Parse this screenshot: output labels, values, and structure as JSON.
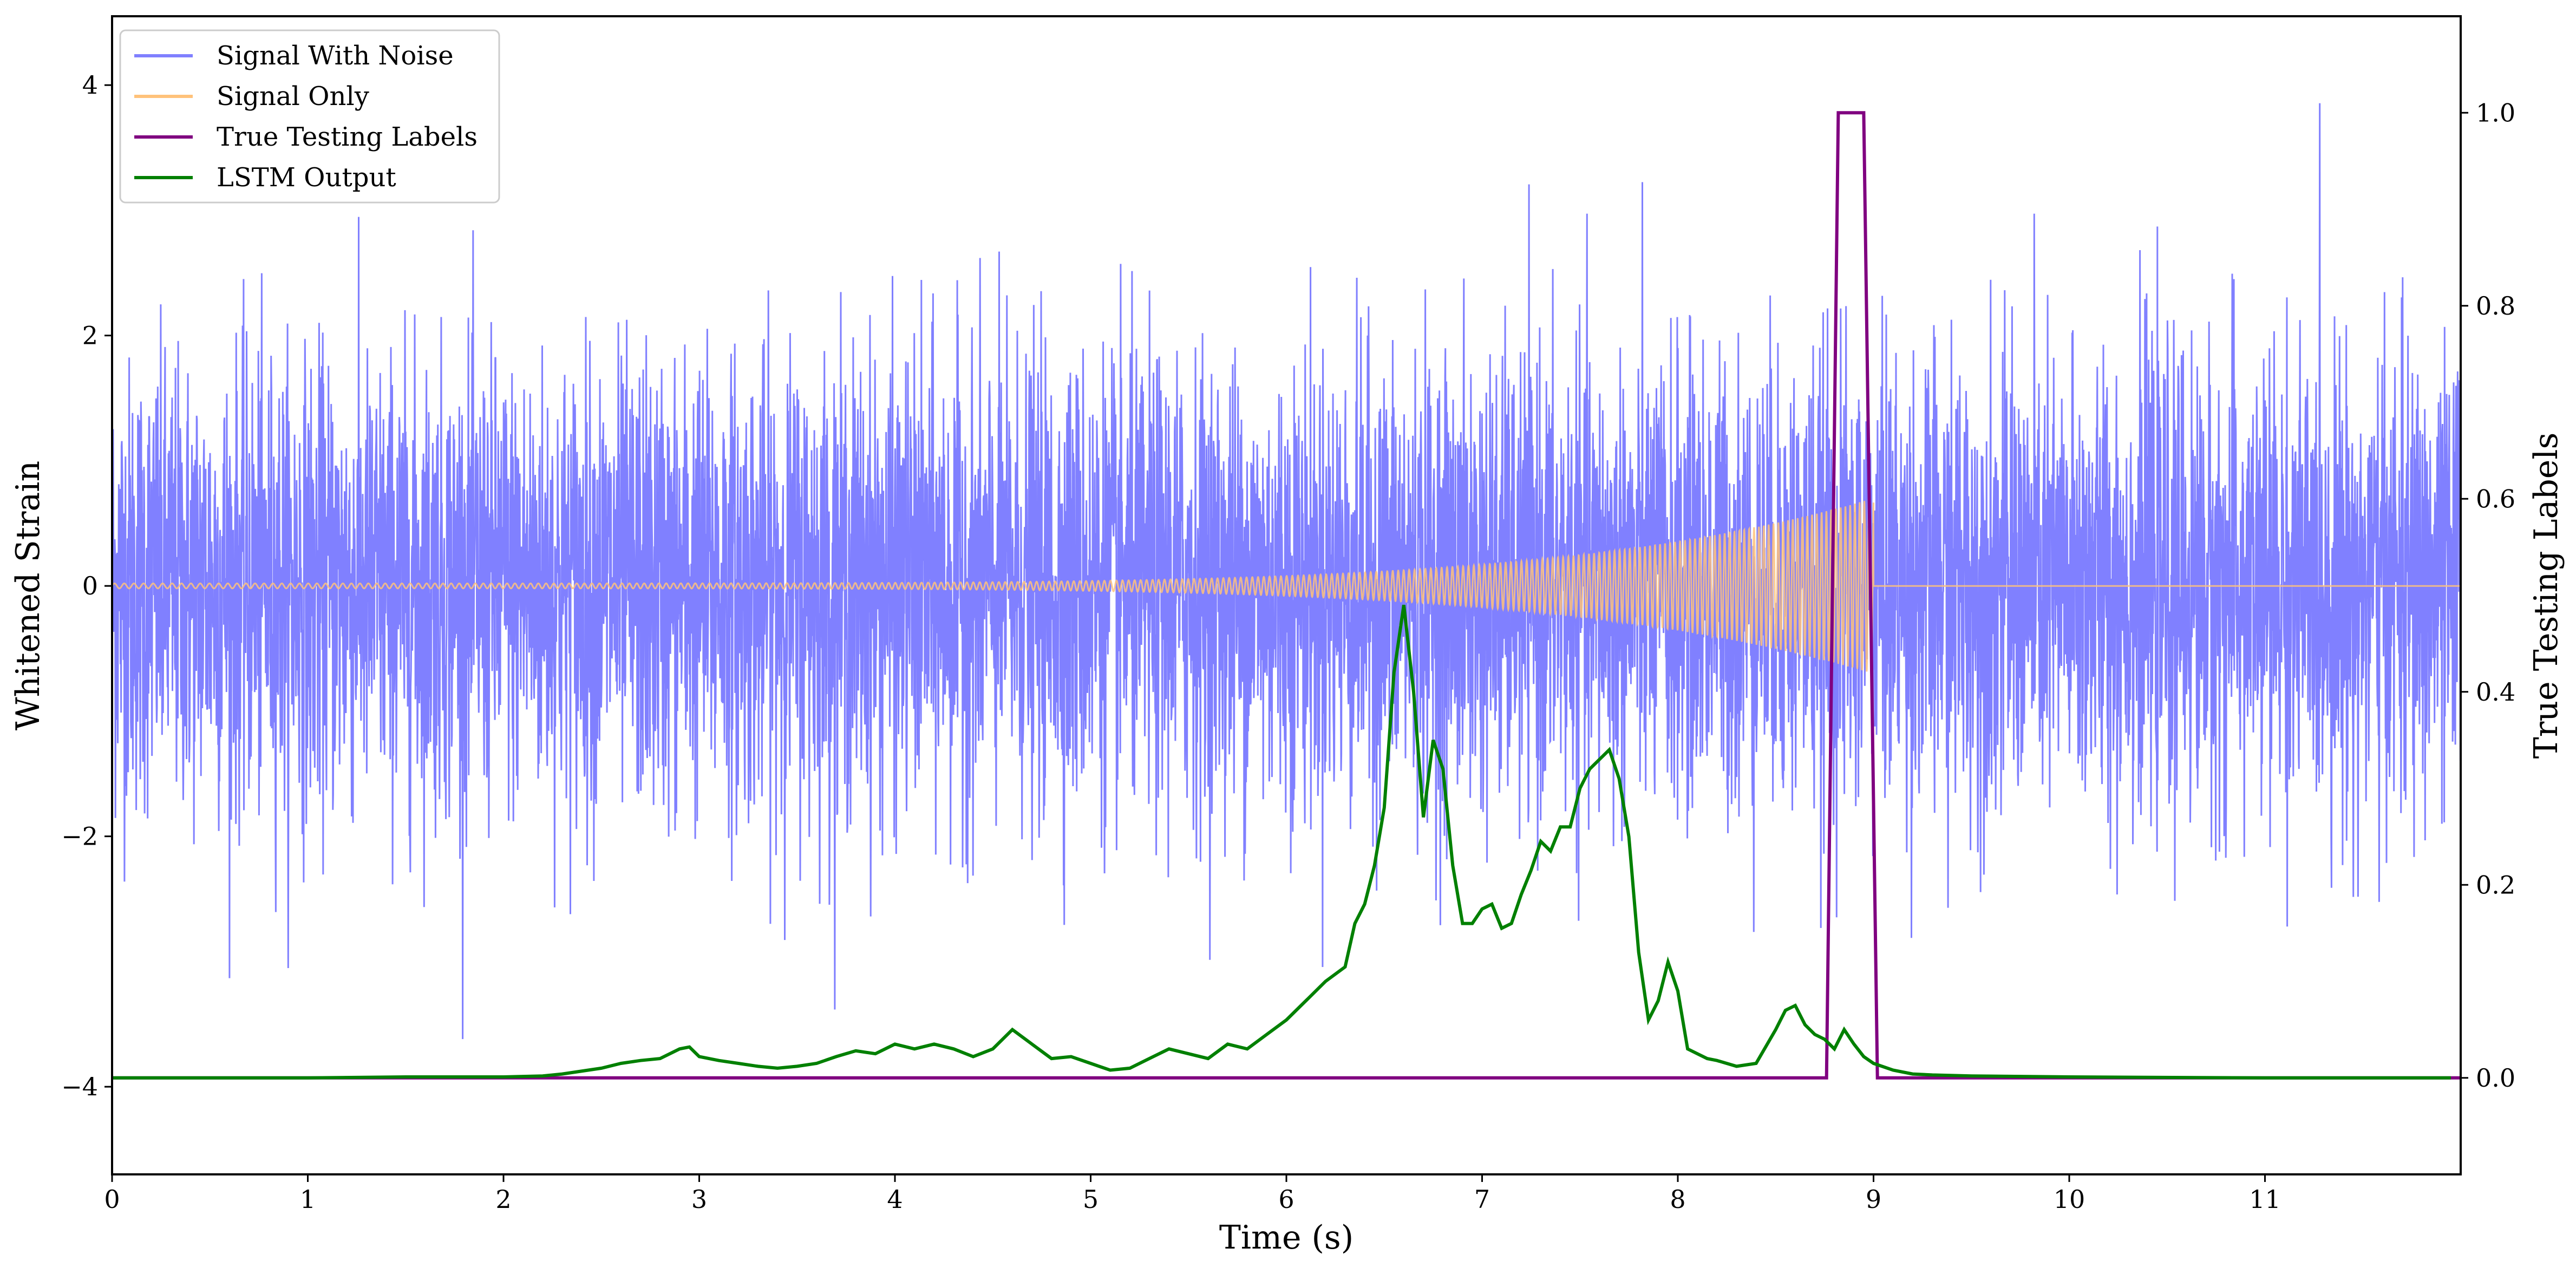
{
  "chart_data": {
    "type": "line",
    "xlabel": "Time (s)",
    "ylabel": "Whitened Strain",
    "y2label": "True Testing Labels",
    "xlim": [
      0,
      12
    ],
    "ylim": [
      -4.7,
      4.55
    ],
    "y2lim": [
      -0.1,
      1.1
    ],
    "x_ticks": [
      0,
      1,
      2,
      3,
      4,
      5,
      6,
      7,
      8,
      9,
      10,
      11
    ],
    "y_ticks": [
      -4,
      -2,
      0,
      2,
      4
    ],
    "y_tick_labels": [
      "−4",
      "−2",
      "0",
      "2",
      "4"
    ],
    "y2_ticks": [
      0.0,
      0.2,
      0.4,
      0.6,
      0.8,
      1.0
    ],
    "y2_tick_labels": [
      "0.0",
      "0.2",
      "0.4",
      "0.6",
      "0.8",
      "1.0"
    ],
    "grid": false,
    "legend_position": "top-left",
    "colors": {
      "signal_with_noise": "#8080ff",
      "signal_only": "#ffc27a",
      "true_labels": "#800080",
      "lstm_output": "#008000"
    },
    "series": [
      {
        "name": "Signal With Noise",
        "axis": "left",
        "description_kind": "gaussian-noise",
        "x_range": [
          0,
          12
        ],
        "std": 0.9,
        "y_min": -4.3,
        "y_max": 4.15
      },
      {
        "name": "Signal Only",
        "axis": "left",
        "description_kind": "chirp",
        "x_start": 0,
        "x_end": 9.0,
        "amplitude_start": 0.02,
        "amplitude_end": 0.7
      },
      {
        "name": "True Testing Labels",
        "axis": "right",
        "x": [
          0,
          8.76,
          8.82,
          8.95,
          9.02,
          12
        ],
        "values": [
          0,
          0,
          1,
          1,
          0,
          0
        ]
      },
      {
        "name": "LSTM Output",
        "axis": "right",
        "x": [
          0,
          0.5,
          1.0,
          1.5,
          2.0,
          2.2,
          2.3,
          2.5,
          2.6,
          2.7,
          2.8,
          2.9,
          2.95,
          3.0,
          3.1,
          3.2,
          3.3,
          3.4,
          3.5,
          3.6,
          3.7,
          3.8,
          3.9,
          4.0,
          4.1,
          4.2,
          4.3,
          4.4,
          4.5,
          4.6,
          4.7,
          4.8,
          4.9,
          5.0,
          5.1,
          5.2,
          5.3,
          5.4,
          5.5,
          5.6,
          5.7,
          5.8,
          5.9,
          6.0,
          6.1,
          6.2,
          6.3,
          6.35,
          6.4,
          6.45,
          6.5,
          6.55,
          6.6,
          6.65,
          6.7,
          6.75,
          6.8,
          6.85,
          6.9,
          6.95,
          7.0,
          7.05,
          7.1,
          7.15,
          7.2,
          7.25,
          7.3,
          7.35,
          7.4,
          7.45,
          7.5,
          7.55,
          7.6,
          7.65,
          7.7,
          7.75,
          7.8,
          7.85,
          7.9,
          7.95,
          8.0,
          8.05,
          8.1,
          8.15,
          8.2,
          8.3,
          8.4,
          8.5,
          8.55,
          8.6,
          8.65,
          8.7,
          8.75,
          8.8,
          8.85,
          8.9,
          8.95,
          9.0,
          9.1,
          9.2,
          9.3,
          9.5,
          10.0,
          11.0,
          11.95
        ],
        "values": [
          0.0,
          0.0,
          0.0,
          0.001,
          0.001,
          0.002,
          0.004,
          0.01,
          0.015,
          0.018,
          0.02,
          0.03,
          0.032,
          0.022,
          0.018,
          0.015,
          0.012,
          0.01,
          0.012,
          0.015,
          0.022,
          0.028,
          0.025,
          0.035,
          0.03,
          0.035,
          0.03,
          0.022,
          0.03,
          0.05,
          0.035,
          0.02,
          0.022,
          0.015,
          0.008,
          0.01,
          0.02,
          0.03,
          0.025,
          0.02,
          0.035,
          0.03,
          0.045,
          0.06,
          0.08,
          0.1,
          0.115,
          0.16,
          0.18,
          0.22,
          0.28,
          0.42,
          0.49,
          0.4,
          0.27,
          0.35,
          0.32,
          0.22,
          0.16,
          0.16,
          0.175,
          0.18,
          0.155,
          0.16,
          0.19,
          0.215,
          0.245,
          0.235,
          0.26,
          0.26,
          0.3,
          0.32,
          0.33,
          0.34,
          0.31,
          0.25,
          0.13,
          0.06,
          0.08,
          0.12,
          0.09,
          0.03,
          0.025,
          0.02,
          0.018,
          0.012,
          0.015,
          0.05,
          0.07,
          0.075,
          0.055,
          0.045,
          0.04,
          0.03,
          0.05,
          0.035,
          0.022,
          0.015,
          0.008,
          0.004,
          0.003,
          0.002,
          0.001,
          0.0,
          0.0
        ]
      }
    ]
  }
}
